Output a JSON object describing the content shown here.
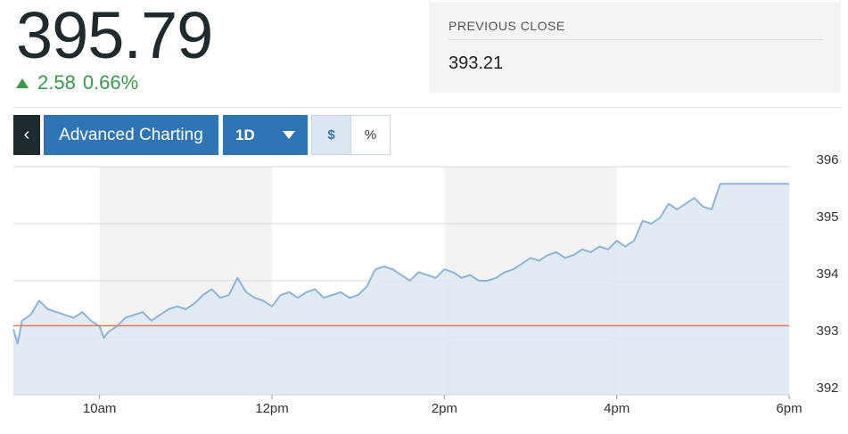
{
  "quote": {
    "price": "395.79",
    "change": "2.58",
    "change_pct": "0.66%",
    "direction_icon": "up-triangle-icon"
  },
  "previous_close": {
    "label": "PREVIOUS CLOSE",
    "value": "393.21"
  },
  "controls": {
    "back_glyph": "‹",
    "advanced_label": "Advanced Charting",
    "range_label": "1D",
    "dollar_label": "$",
    "percent_label": "%"
  },
  "colors": {
    "line": "#8db4dc",
    "fill": "#dde7f1",
    "prev_close_line": "#e07a5f",
    "band": "#f3f3f3",
    "up": "#3a9a4a",
    "button": "#2f74b5"
  },
  "chart_data": {
    "type": "area",
    "title": "",
    "xlabel": "",
    "ylabel": "",
    "x_tick_labels": [
      "10am",
      "12pm",
      "2pm",
      "4pm",
      "6pm"
    ],
    "x_ticks_hours": [
      10,
      12,
      14,
      16,
      18
    ],
    "y_tick_labels": [
      "396",
      "395",
      "394",
      "393",
      "392"
    ],
    "y_ticks": [
      396,
      395,
      394,
      393,
      392
    ],
    "xlim": [
      9.0,
      18.0
    ],
    "ylim": [
      392,
      396
    ],
    "previous_close": 393.21,
    "grid": true,
    "series": [
      {
        "x": [
          9.0,
          9.05,
          9.1,
          9.2,
          9.3,
          9.4,
          9.5,
          9.6,
          9.7,
          9.8,
          9.9,
          10.0,
          10.05,
          10.1,
          10.2,
          10.3,
          10.4,
          10.5,
          10.6,
          10.7,
          10.8,
          10.9,
          11.0,
          11.1,
          11.2,
          11.3,
          11.4,
          11.5,
          11.6,
          11.7,
          11.8,
          11.9,
          12.0,
          12.1,
          12.2,
          12.3,
          12.4,
          12.5,
          12.6,
          12.7,
          12.8,
          12.9,
          13.0,
          13.1,
          13.2,
          13.3,
          13.4,
          13.5,
          13.6,
          13.7,
          13.8,
          13.9,
          14.0,
          14.1,
          14.2,
          14.3,
          14.4,
          14.5,
          14.6,
          14.7,
          14.8,
          14.9,
          15.0,
          15.1,
          15.2,
          15.3,
          15.4,
          15.5,
          15.6,
          15.7,
          15.8,
          15.9,
          16.0,
          16.1,
          16.2,
          16.3,
          16.4,
          16.5,
          16.6,
          16.7,
          16.8,
          16.9,
          17.0,
          17.1,
          17.2,
          17.3,
          17.4,
          17.5,
          17.6,
          18.0
        ],
        "values": [
          393.15,
          392.9,
          393.3,
          393.4,
          393.65,
          393.5,
          393.45,
          393.4,
          393.35,
          393.45,
          393.3,
          393.2,
          393.0,
          393.1,
          393.2,
          393.35,
          393.4,
          393.45,
          393.3,
          393.4,
          393.5,
          393.55,
          393.5,
          393.6,
          393.75,
          393.85,
          393.7,
          393.75,
          394.05,
          393.8,
          393.7,
          393.65,
          393.55,
          393.75,
          393.8,
          393.7,
          393.8,
          393.85,
          393.7,
          393.75,
          393.8,
          393.7,
          393.75,
          393.9,
          394.2,
          394.25,
          394.2,
          394.1,
          394.0,
          394.15,
          394.1,
          394.05,
          394.2,
          394.15,
          394.05,
          394.1,
          394.0,
          394.0,
          394.05,
          394.15,
          394.2,
          394.3,
          394.4,
          394.35,
          394.45,
          394.5,
          394.4,
          394.45,
          394.55,
          394.5,
          394.6,
          394.55,
          394.7,
          394.6,
          394.7,
          395.05,
          395.0,
          395.1,
          395.35,
          395.25,
          395.35,
          395.45,
          395.3,
          395.25,
          395.7,
          395.7,
          395.7,
          395.7,
          395.7,
          395.7
        ]
      }
    ]
  }
}
